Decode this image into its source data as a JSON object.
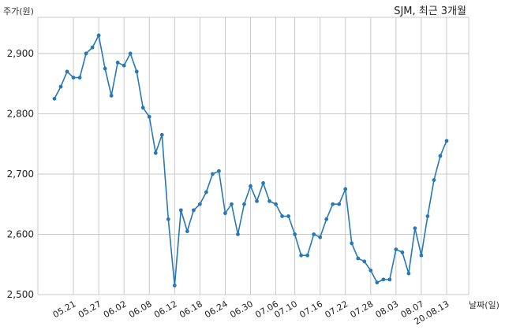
{
  "chart_data": {
    "type": "line",
    "title": "SJM, 최근 3개월",
    "ylabel": "주가(원)",
    "xlabel": "날짜(일)",
    "ylim": [
      2500,
      2960
    ],
    "yticks": [
      2500,
      2600,
      2700,
      2800,
      2900
    ],
    "ytick_labels": [
      "2,500",
      "2,600",
      "2,700",
      "2,800",
      "2,900"
    ],
    "xticks": [
      {
        "i": 3,
        "label": "05.21"
      },
      {
        "i": 7,
        "label": "05.27"
      },
      {
        "i": 11,
        "label": "06.02"
      },
      {
        "i": 15,
        "label": "06.08"
      },
      {
        "i": 19,
        "label": "06.12"
      },
      {
        "i": 23,
        "label": "06.18"
      },
      {
        "i": 27,
        "label": "06.24"
      },
      {
        "i": 31,
        "label": "06.30"
      },
      {
        "i": 35,
        "label": "07.06"
      },
      {
        "i": 38,
        "label": "07.10"
      },
      {
        "i": 42,
        "label": "07.16"
      },
      {
        "i": 46,
        "label": "07.22"
      },
      {
        "i": 50,
        "label": "07.28"
      },
      {
        "i": 54,
        "label": "08.03"
      },
      {
        "i": 58,
        "label": "08.07"
      },
      {
        "i": 62,
        "label": "20.08.13"
      }
    ],
    "grid": true,
    "series": [
      {
        "values": [
          2825,
          2845,
          2870,
          2860,
          2860,
          2900,
          2910,
          2930,
          2875,
          2830,
          2885,
          2880,
          2900,
          2870,
          2810,
          2795,
          2735,
          2765,
          2625,
          2515,
          2640,
          2605,
          2640,
          2650,
          2670,
          2700,
          2705,
          2635,
          2650,
          2600,
          2650,
          2680,
          2655,
          2685,
          2655,
          2650,
          2630,
          2630,
          2600,
          2565,
          2565,
          2600,
          2595,
          2625,
          2650,
          2650,
          2675,
          2585,
          2560,
          2555,
          2540,
          2520,
          2525,
          2525,
          2575,
          2570,
          2535,
          2610,
          2565,
          2630,
          2690,
          2730,
          2755
        ],
        "color": "#2878b5"
      }
    ]
  }
}
